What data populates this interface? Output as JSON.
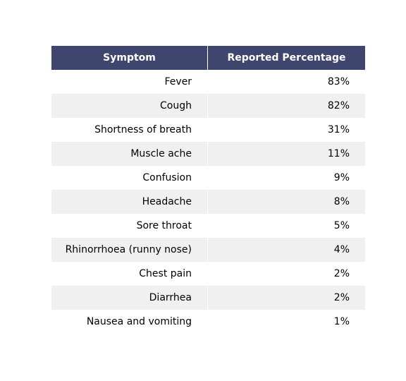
{
  "chart_data": {
    "type": "table",
    "columns": [
      "Symptom",
      "Reported Percentage"
    ],
    "rows": [
      {
        "symptom": "Fever",
        "percentage": "83%"
      },
      {
        "symptom": "Cough",
        "percentage": "82%"
      },
      {
        "symptom": "Shortness of breath",
        "percentage": "31%"
      },
      {
        "symptom": "Muscle ache",
        "percentage": "11%"
      },
      {
        "symptom": "Confusion",
        "percentage": "9%"
      },
      {
        "symptom": "Headache",
        "percentage": "8%"
      },
      {
        "symptom": "Sore throat",
        "percentage": "5%"
      },
      {
        "symptom": "Rhinorrhoea (runny nose)",
        "percentage": "4%"
      },
      {
        "symptom": "Chest pain",
        "percentage": "2%"
      },
      {
        "symptom": "Diarrhea",
        "percentage": "2%"
      },
      {
        "symptom": "Nausea and vomiting",
        "percentage": "1%"
      }
    ]
  },
  "colors": {
    "header_bg": "#3f466e",
    "header_text": "#ffffff",
    "row_alt_bg": "#f0f0f0",
    "row_bg": "#ffffff"
  }
}
